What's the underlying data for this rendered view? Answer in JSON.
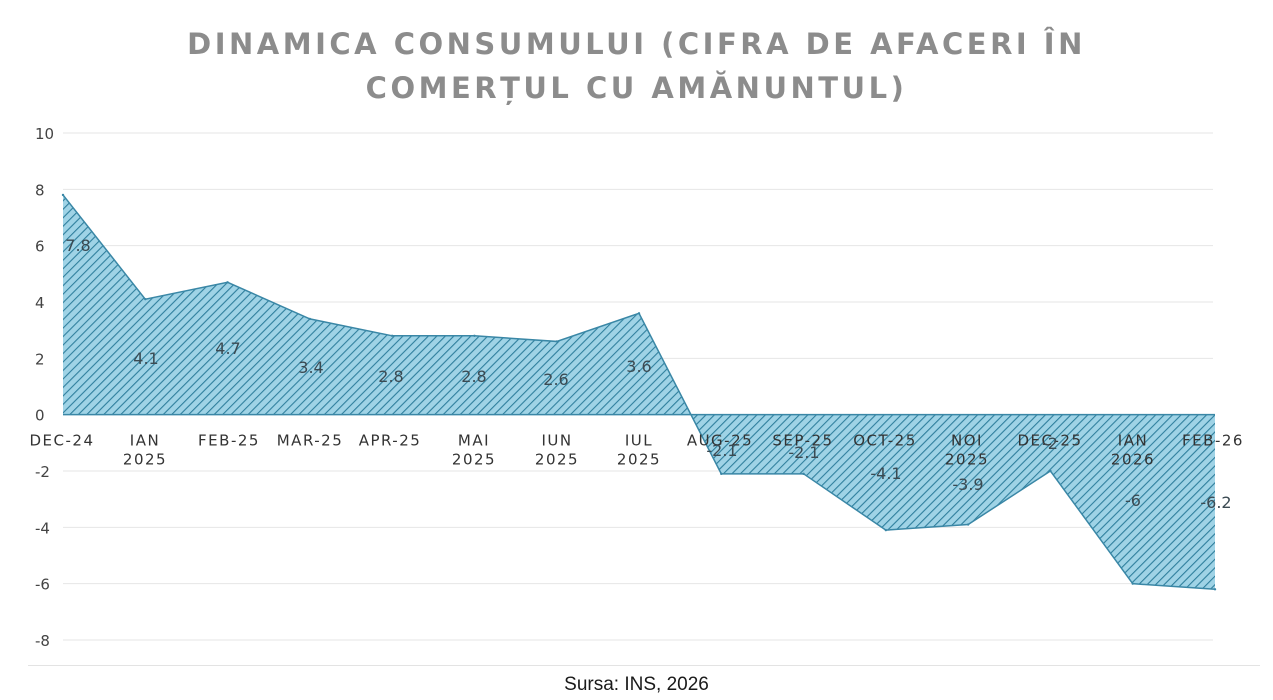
{
  "title_lines": [
    "DINAMICA CONSUMULUI (CIFRA DE AFACERI ÎN",
    "COMERȚUL CU AMĂNUNTUL)"
  ],
  "source": "Sursa: INS, 2026",
  "colors": {
    "fill": "#9fd3e6",
    "hatch": "#2f7f9d",
    "outline": "#3a87a6",
    "title": "#8c8c8c",
    "axis_text": "#555555",
    "grid": "#e6e6e6"
  },
  "chart_data": {
    "type": "area",
    "title": "DINAMICA CONSUMULUI (CIFRA DE AFACERI ÎN COMERȚUL CU AMĂNUNTUL)",
    "categories": [
      [
        "DEC-24"
      ],
      [
        "IAN",
        "2025"
      ],
      [
        "FEB-25"
      ],
      [
        "MAR-25"
      ],
      [
        "APR-25"
      ],
      [
        "MAI",
        "2025"
      ],
      [
        "IUN",
        "2025"
      ],
      [
        "IUL",
        "2025"
      ],
      [
        "AUG-25"
      ],
      [
        "SEP-25"
      ],
      [
        "OCT-25"
      ],
      [
        "NOI",
        "2025"
      ],
      [
        "DEC-25"
      ],
      [
        "IAN",
        "2026"
      ],
      [
        "FEB-26"
      ]
    ],
    "values": [
      7.8,
      4.1,
      4.7,
      3.4,
      2.8,
      2.8,
      2.6,
      3.6,
      -2.1,
      -2.1,
      -4.1,
      -3.9,
      -2,
      -6,
      -6.2
    ],
    "data_labels": [
      "7.8",
      "4.1",
      "4.7",
      "3.4",
      "2.8",
      "2.8",
      "2.6",
      "3.6",
      "-2.1",
      "-2.1",
      "-4.1",
      "-3.9",
      "-2",
      "-6",
      "-6.2"
    ],
    "yticks": [
      "10",
      "8",
      "6",
      "4",
      "2",
      "0",
      "-2",
      "-4",
      "-6",
      "-8"
    ],
    "ylim": [
      -8,
      10
    ],
    "grid": true,
    "legend": "none"
  }
}
